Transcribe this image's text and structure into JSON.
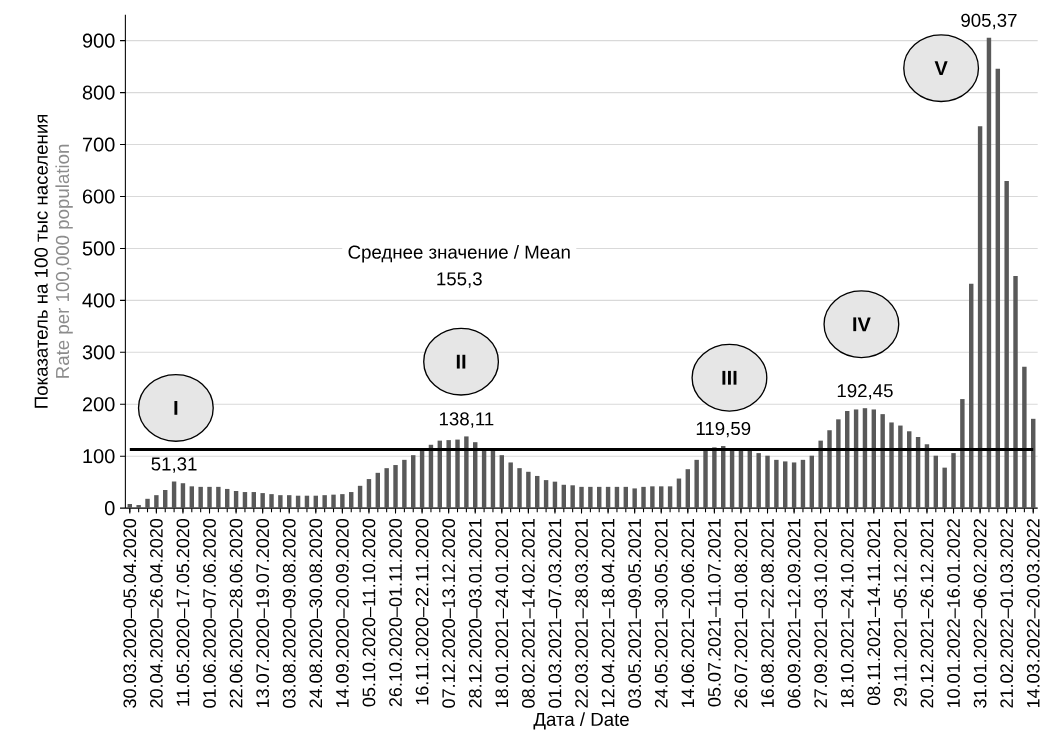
{
  "chart_data": {
    "type": "bar",
    "xlabel": "Дата / Date",
    "ylabel": "Показатель на 100 тыс населения",
    "categories": [
      "30.03.2020–05.04.2020",
      null,
      null,
      "20.04.2020–26.04.2020",
      null,
      null,
      "11.05.2020–17.05.2020",
      null,
      null,
      "01.06.2020–07.06.2020",
      null,
      null,
      "22.06.2020–28.06.2020",
      null,
      null,
      "13.07.2020–19.07.2020",
      null,
      null,
      "03.08.2020–09.08.2020",
      null,
      null,
      "24.08.2020–30.08.2020",
      null,
      null,
      "14.09.2020–20.09.2020",
      null,
      null,
      "05.10.2020–11.10.2020",
      null,
      null,
      "26.10.2020–01.11.2020",
      null,
      null,
      "16.11.2020–22.11.2020",
      null,
      null,
      "07.12.2020–13.12.2020",
      null,
      null,
      "28.12.2020–03.01.2021",
      null,
      null,
      "18.01.2021–24.01.2021",
      null,
      null,
      "08.02.2021–14.02.2021",
      null,
      null,
      "01.03.2021–07.03.2021",
      null,
      null,
      "22.03.2021–28.03.2021",
      null,
      null,
      "12.04.2021–18.04.2021",
      null,
      null,
      "03.05.2021–09.05.2021",
      null,
      null,
      "24.05.2021–30.05.2021",
      null,
      null,
      "14.06.2021–20.06.2021",
      null,
      null,
      "05.07.2021–11.07.2021",
      null,
      null,
      "26.07.2021–01.08.2021",
      null,
      null,
      "16.08.2021–22.08.2021",
      null,
      null,
      "06.09.2021–12.09.2021",
      null,
      null,
      "27.09.2021–03.10.2021",
      null,
      null,
      "18.10.2021–24.10.2021",
      null,
      null,
      "08.11.2021–14.11.2021",
      null,
      null,
      "29.11.2021–05.12.2021",
      null,
      null,
      "20.12.2021–26.12.2021",
      null,
      null,
      "10.01.2022–16.01.2022",
      null,
      null,
      "31.01.2022–06.02.2022",
      null,
      null,
      "21.02.2022–01.03.2022",
      null,
      null,
      "14.03.2022–20.03.2022"
    ],
    "values": [
      8,
      6,
      18,
      25,
      35,
      51.31,
      48,
      42,
      41,
      41,
      41,
      37,
      33,
      31,
      31,
      29,
      27,
      25,
      25,
      24,
      24,
      24,
      25,
      26,
      27,
      31,
      43,
      56,
      68,
      77,
      83,
      93,
      102,
      110,
      122,
      130,
      131,
      132,
      138.11,
      127,
      113,
      113,
      102,
      88,
      77,
      70,
      62,
      54,
      51,
      45,
      44,
      41,
      41,
      41,
      41,
      41,
      41,
      38,
      41,
      42,
      42,
      42,
      57,
      75,
      93,
      111,
      117,
      119.59,
      112,
      112,
      111,
      106,
      101,
      93,
      90,
      88,
      93,
      101,
      130,
      150,
      171,
      187,
      190,
      192.45,
      190,
      181,
      165,
      159,
      148,
      137,
      123,
      101,
      78,
      106,
      210,
      432,
      735,
      905.37,
      846,
      630,
      447,
      272,
      172
    ],
    "value_labels": [
      null,
      null,
      null,
      null,
      null,
      "51,31",
      null,
      null,
      null,
      null,
      null,
      null,
      null,
      null,
      null,
      null,
      null,
      null,
      null,
      null,
      null,
      null,
      null,
      null,
      null,
      null,
      null,
      null,
      null,
      null,
      null,
      null,
      null,
      null,
      null,
      null,
      null,
      null,
      "138,11",
      null,
      null,
      null,
      null,
      null,
      null,
      null,
      null,
      null,
      null,
      null,
      null,
      null,
      null,
      null,
      null,
      null,
      null,
      null,
      null,
      null,
      null,
      null,
      null,
      null,
      null,
      null,
      null,
      "119,59",
      null,
      null,
      null,
      null,
      null,
      null,
      null,
      null,
      null,
      null,
      null,
      null,
      null,
      null,
      null,
      "192,45",
      null,
      null,
      null,
      null,
      null,
      null,
      null,
      null,
      null,
      null,
      null,
      null,
      null,
      "905,37",
      null,
      null,
      null,
      null,
      null
    ],
    "color": "#595959",
    "ylim": [
      0,
      950
    ],
    "yticks": [
      0,
      100,
      200,
      300,
      400,
      500,
      600,
      700,
      800,
      900
    ],
    "grid": "y",
    "ref_lines": [
      {
        "axis": "y",
        "value": 113,
        "color": "#000000"
      }
    ],
    "annotations": [
      "Среднее значение / Mean",
      "155,3",
      "Rate per 100,000 population",
      "I",
      "II",
      "III",
      "IV",
      "V"
    ]
  }
}
